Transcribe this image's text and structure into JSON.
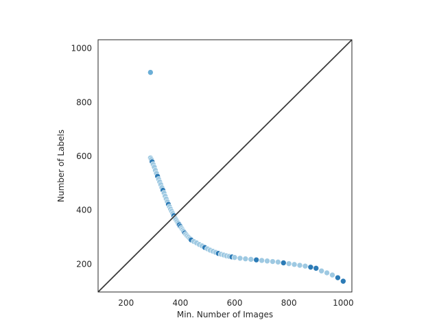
{
  "chart_data": {
    "type": "scatter",
    "title": "",
    "xlabel": "Min. Number of Images",
    "ylabel": "Number of Labels",
    "xlim": [
      97,
      1032
    ],
    "ylim": [
      97,
      1032
    ],
    "x_ticks": [
      200,
      400,
      600,
      800,
      1000
    ],
    "y_ticks": [
      200,
      400,
      600,
      800,
      1000
    ],
    "grid": false,
    "reference_line": "y = x",
    "colors": {
      "axes": "#262626",
      "point_fill": "#9ec9e2",
      "point_dark": "#2c7bb6",
      "point_outlier": "#6baed6",
      "diagonal": "#3a3a3a"
    },
    "series": [
      {
        "x": [
          290,
          293,
          296,
          300,
          304,
          308,
          312,
          316,
          320,
          324,
          328,
          332,
          336,
          340,
          344,
          348,
          352,
          356,
          360,
          364,
          368,
          372,
          376,
          380,
          384,
          388,
          392,
          396,
          400,
          404,
          408,
          412,
          416,
          420,
          425,
          430,
          435,
          440,
          450,
          460,
          470,
          480,
          490,
          500,
          510,
          520,
          530,
          540,
          550,
          560,
          570,
          580,
          590,
          600,
          620,
          640,
          660,
          680,
          700,
          720,
          740,
          760,
          780,
          800,
          820,
          840,
          860,
          880,
          900,
          920,
          940,
          960,
          980,
          1000
        ],
        "y": [
          594,
          588,
          580,
          570,
          560,
          548,
          537,
          526,
          515,
          505,
          495,
          484,
          474,
          464,
          452,
          442,
          432,
          422,
          413,
          404,
          396,
          388,
          380,
          372,
          365,
          358,
          352,
          346,
          340,
          334,
          328,
          322,
          316,
          311,
          305,
          300,
          295,
          290,
          284,
          279,
          273,
          268,
          262,
          257,
          252,
          248,
          244,
          240,
          237,
          234,
          231,
          229,
          227,
          225,
          222,
          220,
          218,
          216,
          214,
          212,
          210,
          208,
          205,
          202,
          199,
          196,
          193,
          189,
          185,
          175,
          168,
          160,
          150,
          137
        ]
      },
      {
        "x": [
          290
        ],
        "y": [
          911
        ]
      }
    ]
  }
}
